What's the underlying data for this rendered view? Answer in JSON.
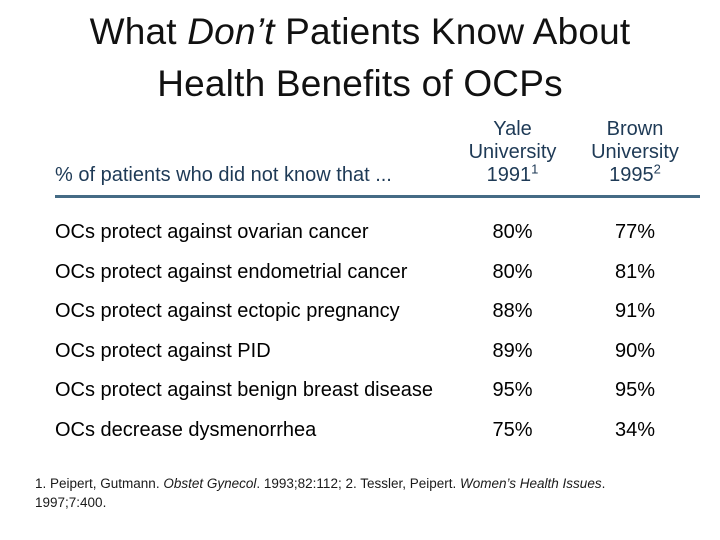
{
  "slide": {
    "title": {
      "pre": "What ",
      "italic": "Don’t",
      "post": " Patients Know About",
      "line2": "Health Benefits of OCPs"
    },
    "table": {
      "row_header": "% of patients who did not know that ...",
      "columns": [
        {
          "line1": "Yale",
          "line2": "University",
          "year": "1991",
          "sup": "1"
        },
        {
          "line1": "Brown",
          "line2": "University",
          "year": "1995",
          "sup": "2"
        }
      ],
      "rows": [
        {
          "label": "OCs protect against ovarian cancer",
          "yale": "80%",
          "brown": "77%"
        },
        {
          "label": "OCs protect against endometrial cancer",
          "yale": "80%",
          "brown": "81%"
        },
        {
          "label": "OCs protect against ectopic pregnancy",
          "yale": "88%",
          "brown": "91%"
        },
        {
          "label": "OCs protect against PID",
          "yale": "89%",
          "brown": "90%"
        },
        {
          "label": "OCs protect against benign breast disease",
          "yale": "95%",
          "brown": "95%"
        },
        {
          "label": "OCs decrease dysmenorrhea",
          "yale": "75%",
          "brown": "34%"
        }
      ]
    },
    "footnote": {
      "p1": "1. Peipert, Gutmann. ",
      "i1": "Obstet Gynecol",
      "p2": ". 1993;82:112; 2. Tessler, Peipert. ",
      "i2": "Women’s Health Issues",
      "p3": ". 1997;7:400."
    },
    "colors": {
      "title_text": "#111111",
      "header_text": "#1E3A56",
      "header_rule": "#456B85",
      "body_text": "#000000"
    }
  },
  "chart_data": {
    "type": "table",
    "title": "What Don’t Patients Know About Health Benefits of OCPs",
    "row_header": "% of patients who did not know that ...",
    "columns": [
      "Yale University 1991",
      "Brown University 1995"
    ],
    "rows": [
      {
        "label": "OCs protect against ovarian cancer",
        "values": [
          80,
          77
        ]
      },
      {
        "label": "OCs protect against endometrial cancer",
        "values": [
          80,
          81
        ]
      },
      {
        "label": "OCs protect against ectopic pregnancy",
        "values": [
          88,
          91
        ]
      },
      {
        "label": "OCs protect against PID",
        "values": [
          89,
          90
        ]
      },
      {
        "label": "OCs protect against benign breast disease",
        "values": [
          95,
          95
        ]
      },
      {
        "label": "OCs decrease dysmenorrhea",
        "values": [
          75,
          34
        ]
      }
    ],
    "units": "%"
  }
}
